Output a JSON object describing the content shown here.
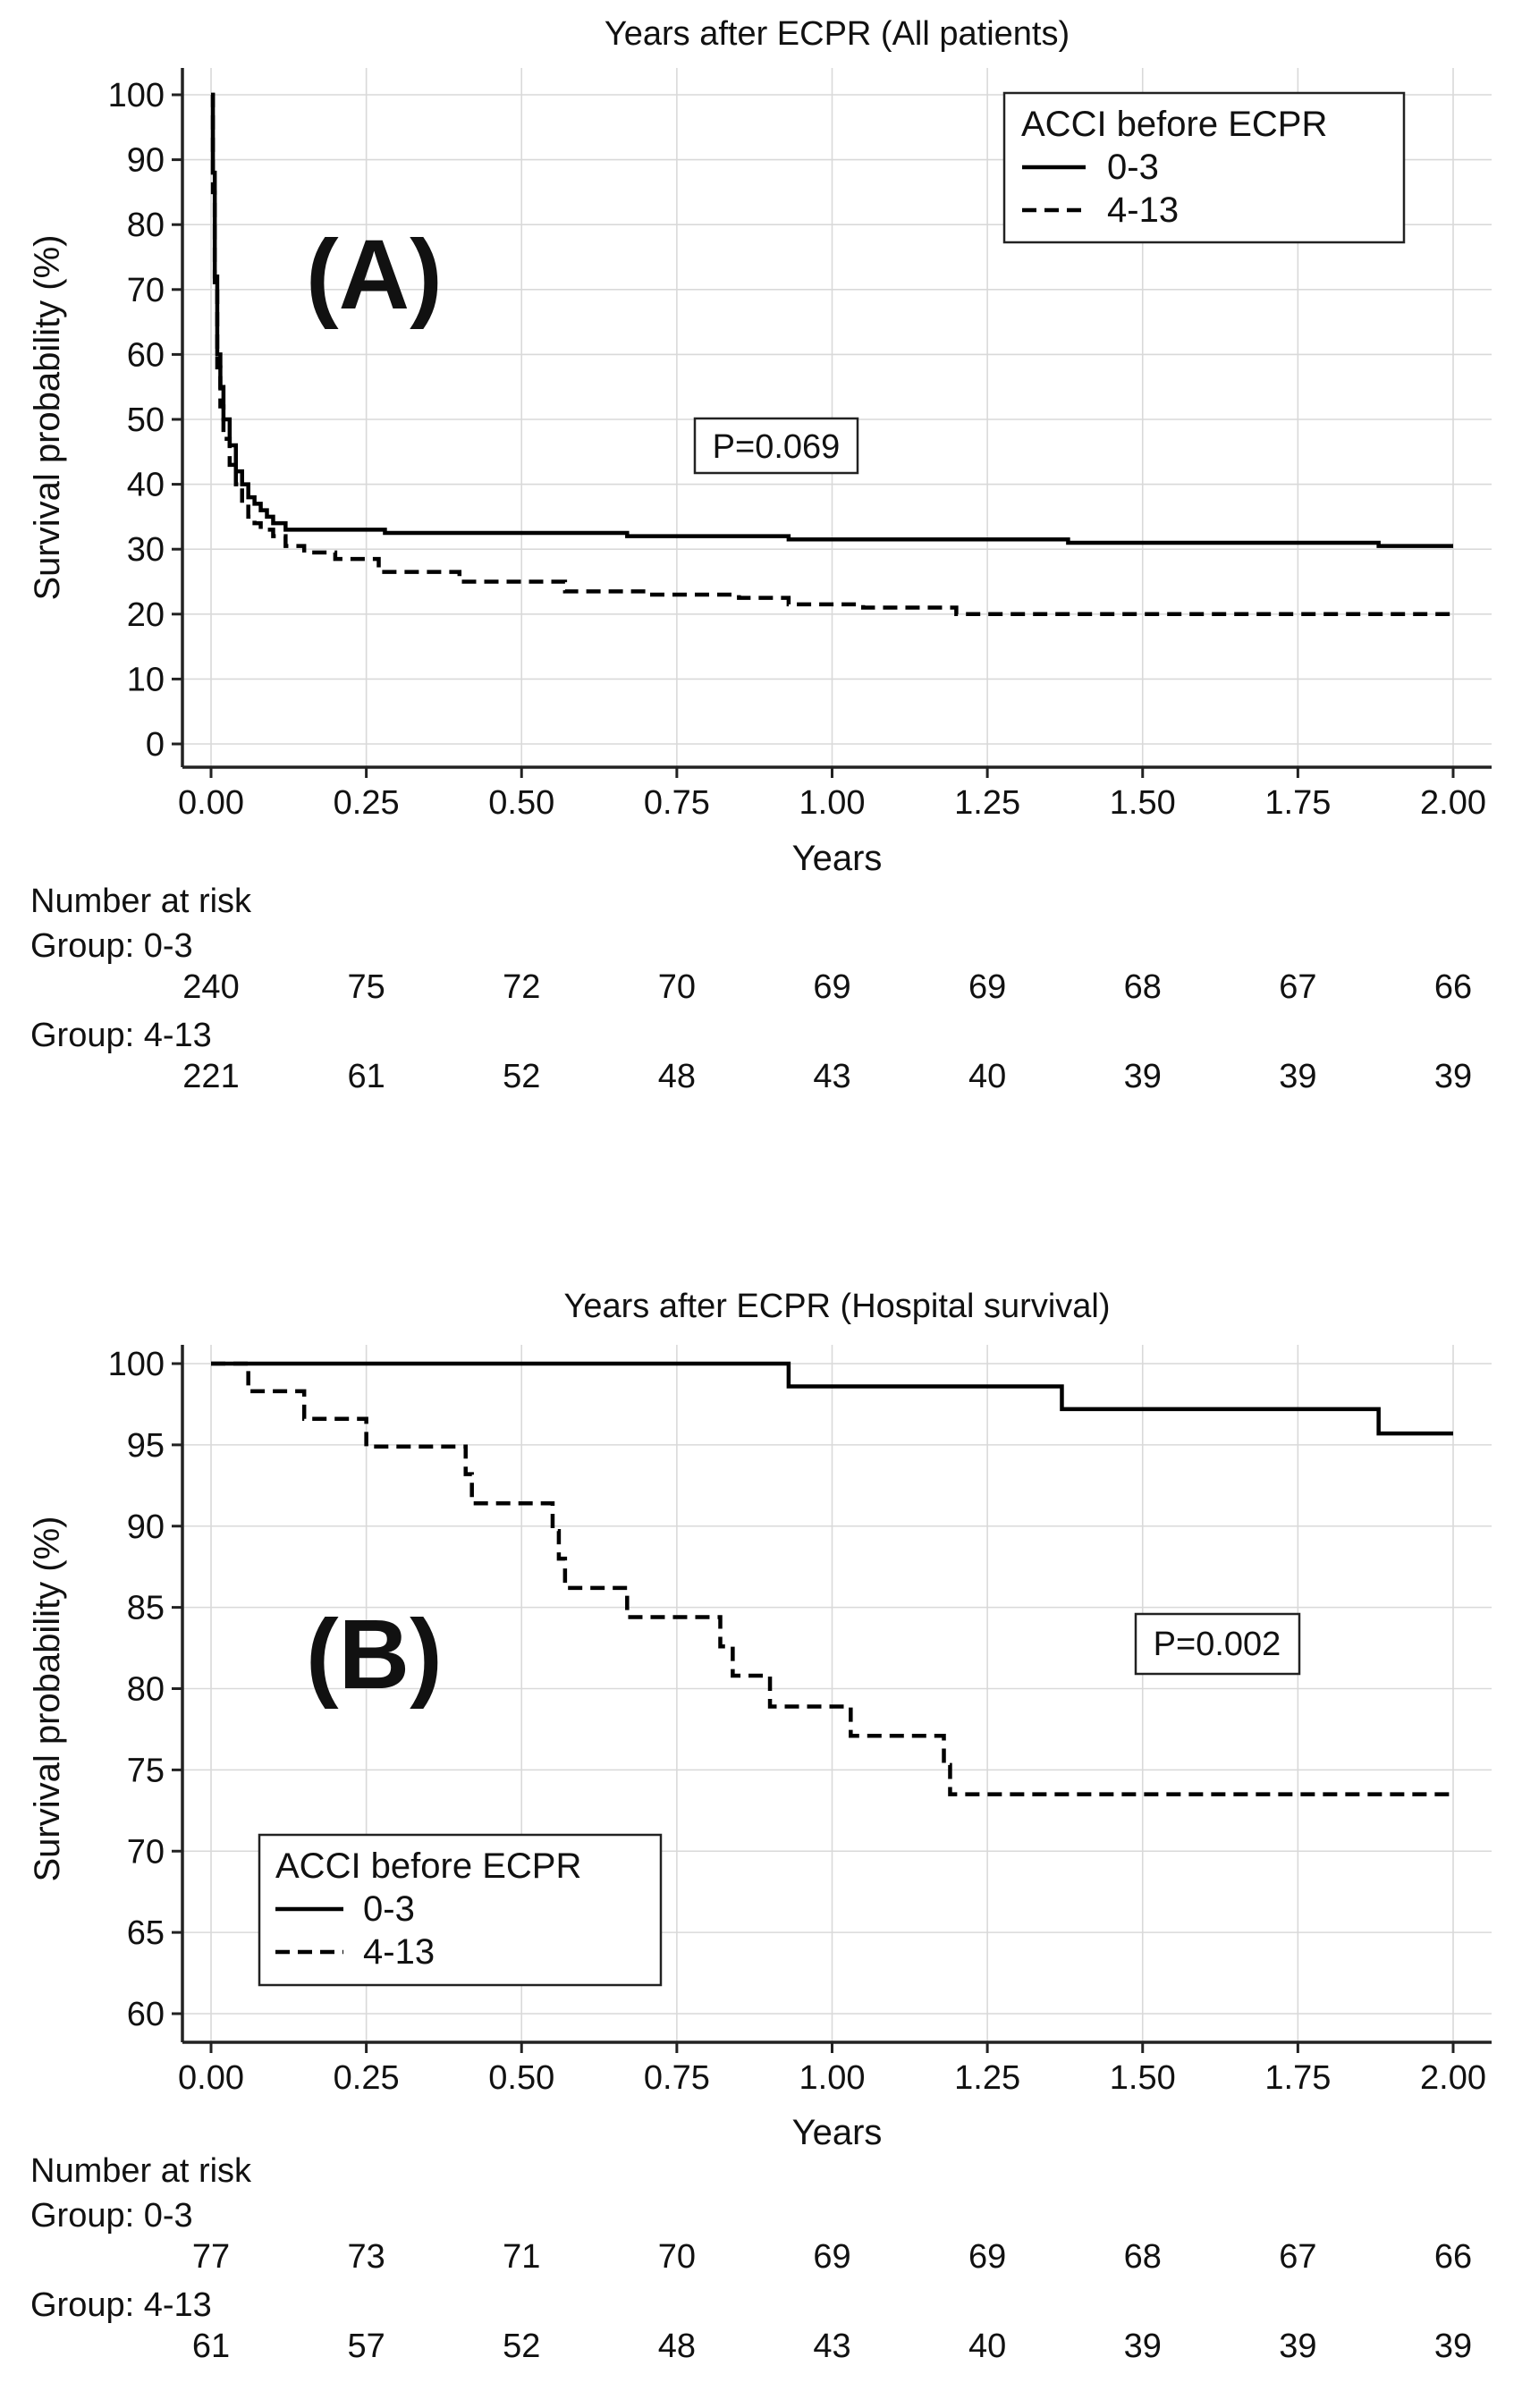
{
  "chart_data": [
    {
      "type": "line",
      "panel": "(A)",
      "title": "Years after ECPR (All patients)",
      "xlabel": "Years",
      "ylabel": "Survival probability (%)",
      "xlim": [
        0,
        2
      ],
      "ylim": [
        0,
        100
      ],
      "xticks": [
        "0.00",
        "0.25",
        "0.50",
        "0.75",
        "1.00",
        "1.25",
        "1.50",
        "1.75",
        "2.00"
      ],
      "yticks": [
        "0",
        "10",
        "20",
        "30",
        "40",
        "50",
        "60",
        "70",
        "80",
        "90",
        "100"
      ],
      "grid": true,
      "legend": {
        "title": "ACCI before ECPR",
        "position": "top-right",
        "entries": [
          "0-3",
          "4-13"
        ]
      },
      "annotation": "P=0.069",
      "series": [
        {
          "name": "0-3",
          "style": "solid",
          "x": [
            0,
            0.003,
            0.006,
            0.01,
            0.015,
            0.02,
            0.03,
            0.04,
            0.05,
            0.06,
            0.07,
            0.08,
            0.09,
            0.1,
            0.12,
            0.28,
            0.67,
            0.93,
            1.38,
            1.88,
            2.0
          ],
          "y": [
            100,
            88,
            72,
            60,
            55,
            50,
            46,
            42,
            40,
            38,
            37,
            36,
            35,
            34,
            33,
            32.5,
            32,
            31.5,
            31,
            30.5,
            30.5
          ]
        },
        {
          "name": "4-13",
          "style": "dashed",
          "x": [
            0,
            0.003,
            0.006,
            0.01,
            0.015,
            0.02,
            0.03,
            0.04,
            0.05,
            0.06,
            0.07,
            0.08,
            0.1,
            0.12,
            0.15,
            0.2,
            0.27,
            0.4,
            0.57,
            0.7,
            0.85,
            0.93,
            1.05,
            1.2,
            2.0
          ],
          "y": [
            100,
            85,
            70,
            58,
            52,
            47,
            43,
            40,
            37,
            35,
            34,
            33,
            32,
            30.5,
            29.5,
            28.5,
            26.5,
            25,
            23.5,
            23,
            22.5,
            21.5,
            21,
            20,
            20
          ]
        }
      ],
      "risk_table": {
        "header": "Number at risk",
        "groups": [
          {
            "label": "Group: 0-3",
            "values": [
              "240",
              "75",
              "72",
              "70",
              "69",
              "69",
              "68",
              "67",
              "66"
            ]
          },
          {
            "label": "Group: 4-13",
            "values": [
              "221",
              "61",
              "52",
              "48",
              "43",
              "40",
              "39",
              "39",
              "39"
            ]
          }
        ]
      }
    },
    {
      "type": "line",
      "panel": "(B)",
      "title": "Years after ECPR (Hospital survival)",
      "xlabel": "Years",
      "ylabel": "Survival probability (%)",
      "xlim": [
        0,
        2
      ],
      "ylim": [
        60,
        100
      ],
      "xticks": [
        "0.00",
        "0.25",
        "0.50",
        "0.75",
        "1.00",
        "1.25",
        "1.50",
        "1.75",
        "2.00"
      ],
      "yticks": [
        "60",
        "65",
        "70",
        "75",
        "80",
        "85",
        "90",
        "95",
        "100"
      ],
      "grid": true,
      "legend": {
        "title": "ACCI before ECPR",
        "position": "bottom-left",
        "entries": [
          "0-3",
          "4-13"
        ]
      },
      "annotation": "P=0.002",
      "series": [
        {
          "name": "0-3",
          "style": "solid",
          "x": [
            0,
            0.93,
            1.37,
            1.88,
            2.0
          ],
          "y": [
            100,
            98.6,
            97.2,
            95.7,
            95.7
          ]
        },
        {
          "name": "4-13",
          "style": "dashed",
          "x": [
            0,
            0.06,
            0.15,
            0.25,
            0.41,
            0.42,
            0.55,
            0.56,
            0.57,
            0.67,
            0.82,
            0.84,
            0.86,
            0.9,
            1.03,
            1.18,
            1.19,
            2.0
          ],
          "y": [
            100,
            98.3,
            96.6,
            94.9,
            93.2,
            91.4,
            89.7,
            88.0,
            86.2,
            84.4,
            82.6,
            80.8,
            80.8,
            78.9,
            77.1,
            75.3,
            73.5,
            73.5
          ]
        }
      ],
      "risk_table": {
        "header": "Number at risk",
        "groups": [
          {
            "label": "Group: 0-3",
            "values": [
              "77",
              "73",
              "71",
              "70",
              "69",
              "69",
              "68",
              "67",
              "66"
            ]
          },
          {
            "label": "Group: 4-13",
            "values": [
              "61",
              "57",
              "52",
              "48",
              "43",
              "40",
              "39",
              "39",
              "39"
            ]
          }
        ]
      }
    }
  ]
}
